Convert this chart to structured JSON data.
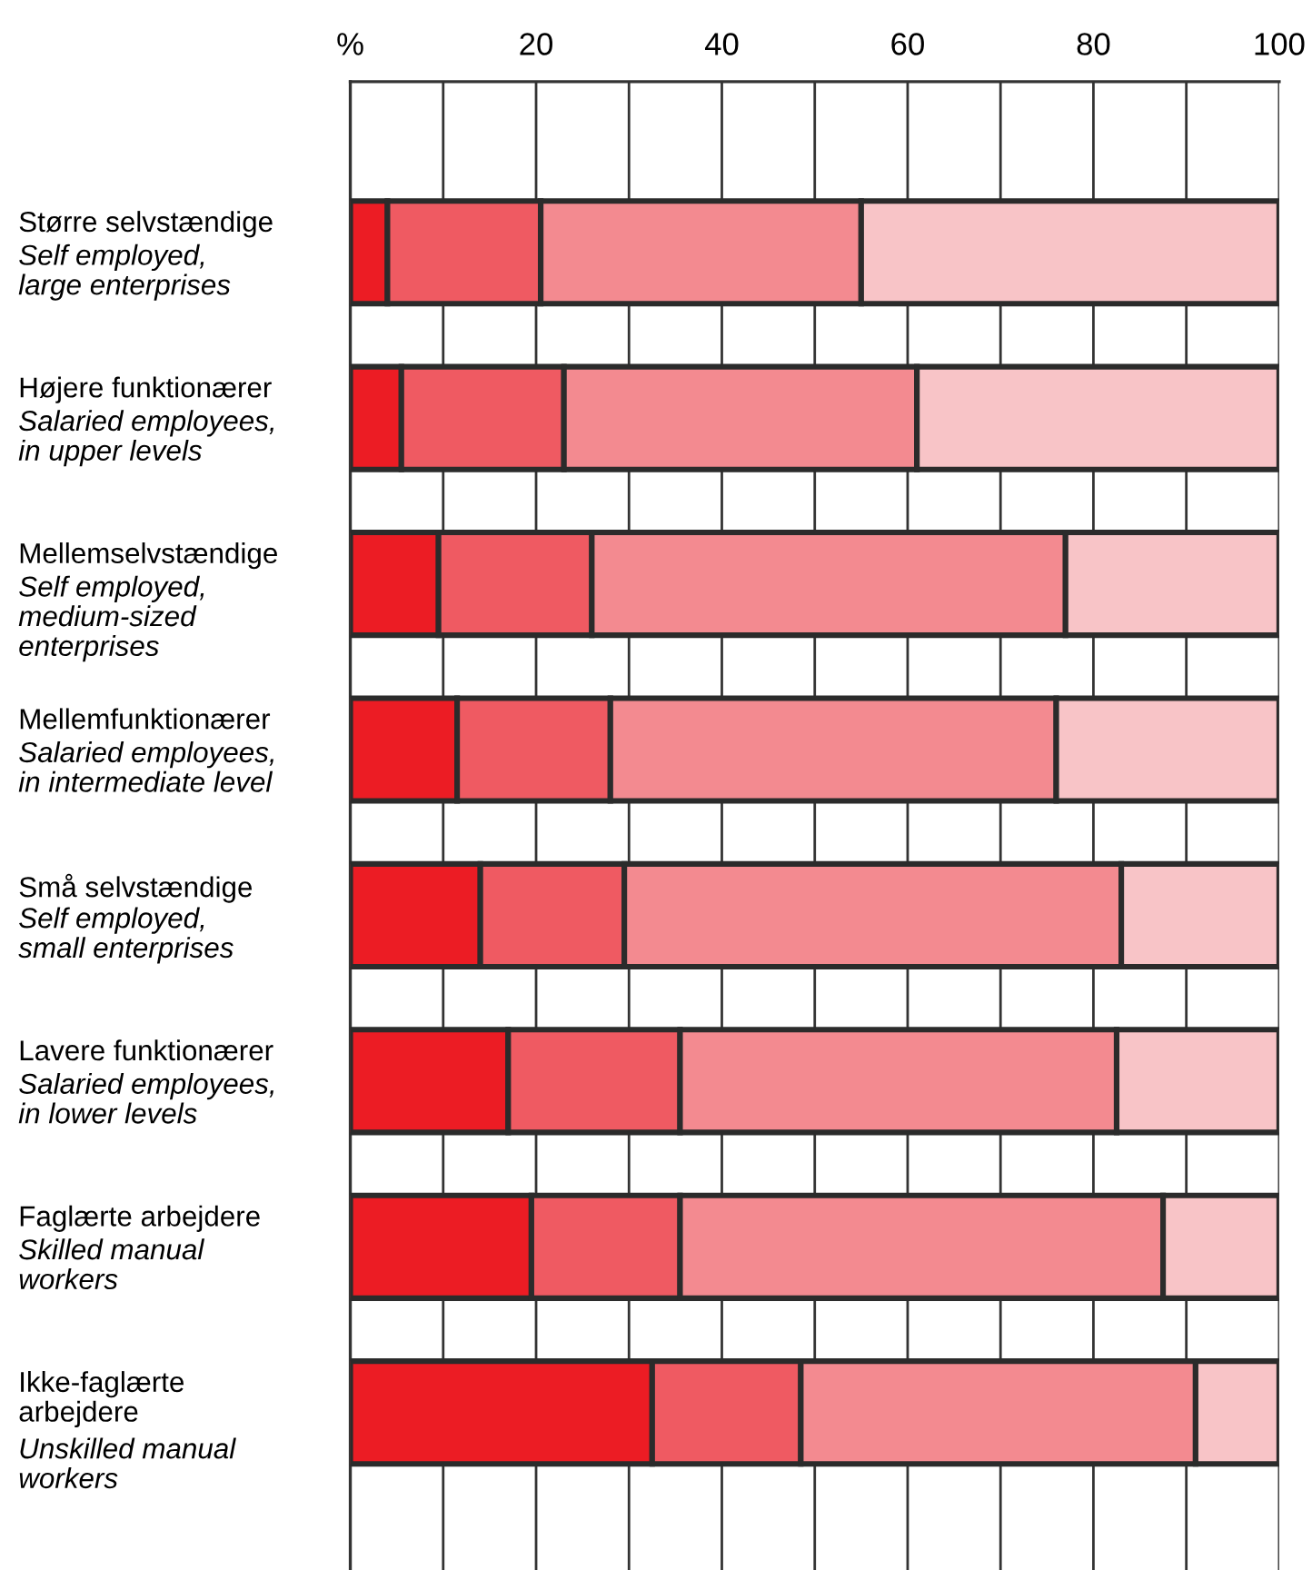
{
  "chart_data": {
    "type": "bar",
    "orientation": "horizontal",
    "stacked": true,
    "categories": [
      "Større selvstændige\n\nSelf employed,\nlarge enterprises",
      "Højere funktionærer\n\nSalaried employees,\nin upper levels",
      "Mellemselvstændige\n\nSelf employed,\nmedium-sized\nenterprises",
      "Mellemfunktionærer\n\nSalaried employees,\nin intermediate level",
      "Små selvstændige\n\nSelf employed,\nsmall enterprises",
      "Lavere funktionærer\n\nSalaried employees,\nin lower levels",
      "Faglærte arbejdere\n\nSkilled manual\nworkers",
      "Ikke-faglærte\narbejdere\n\nUnskilled manual\nworkers"
    ],
    "series": [
      {
        "color": "#ec1c24",
        "values": [
          4,
          5.5,
          9.5,
          11.5,
          14,
          17,
          19.5,
          32.5
        ]
      },
      {
        "color": "#ef5a62",
        "values": [
          16.5,
          17.5,
          16.5,
          16.5,
          15.5,
          18.5,
          16,
          16
        ]
      },
      {
        "color": "#f38a90",
        "values": [
          34.5,
          38,
          51,
          48,
          53.5,
          47,
          52,
          42.5
        ]
      },
      {
        "color": "#f8c4c7",
        "values": [
          45,
          39,
          23,
          24,
          17,
          17.5,
          12.5,
          9
        ]
      }
    ],
    "xlim": [
      0,
      100
    ],
    "xticks": [
      {
        "value": 0,
        "label": "%"
      },
      {
        "value": 10,
        "label": null
      },
      20,
      {
        "value": 30,
        "label": null
      },
      40,
      {
        "value": 50,
        "label": null
      },
      60,
      {
        "value": 70,
        "label": null
      },
      80,
      {
        "value": 90,
        "label": null
      },
      100
    ],
    "grid": "x"
  }
}
